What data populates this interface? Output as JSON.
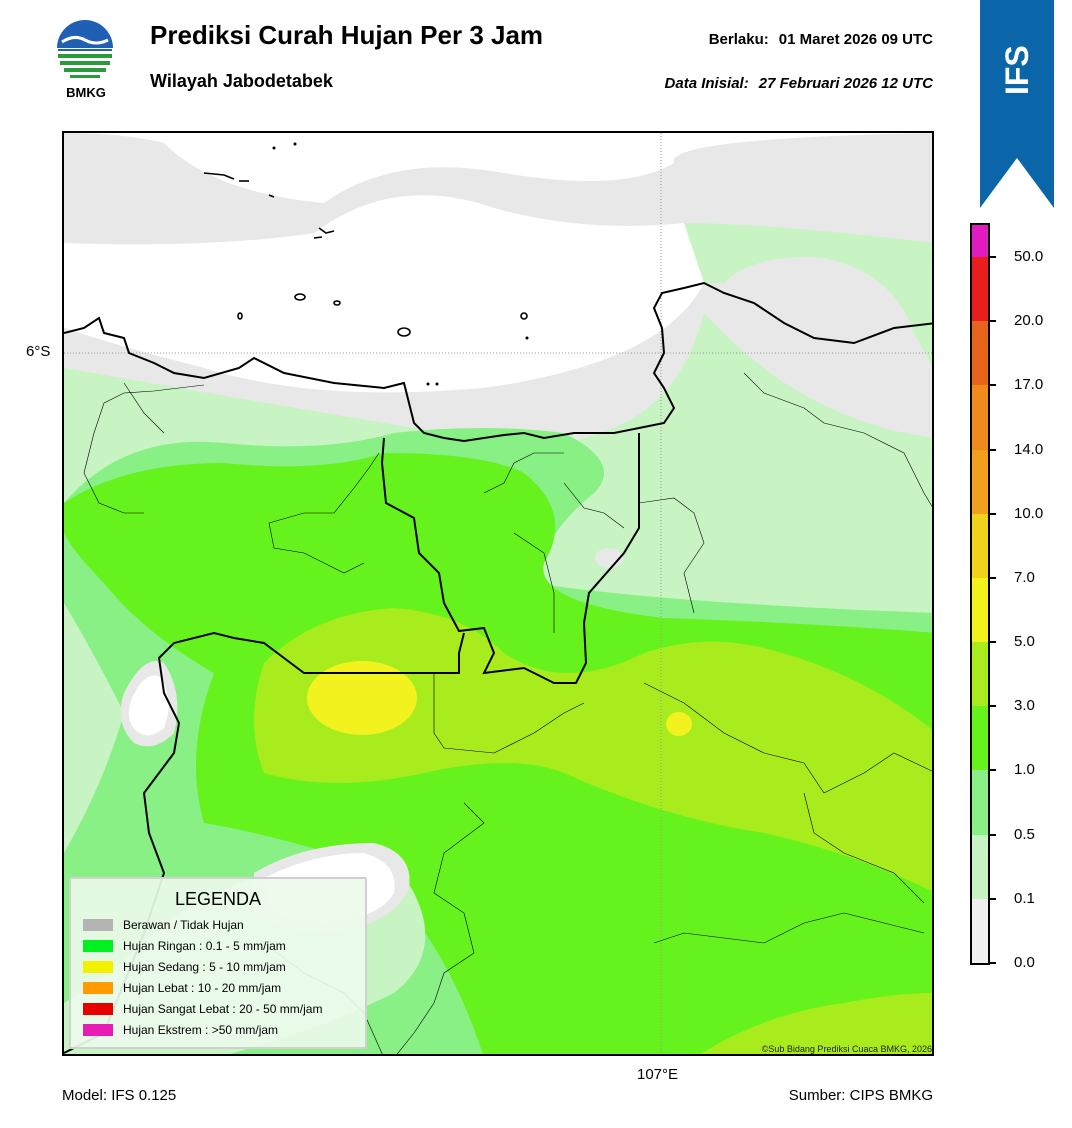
{
  "header": {
    "title": "Prediksi Curah Hujan Per 3 Jam",
    "subtitle": "Wilayah Jabodetabek",
    "valid_label": "Berlaku:",
    "valid_value": "01 Maret 2026 09 UTC",
    "initial_label": "Data Inisial:",
    "initial_value": "27 Februari 2026 12 UTC"
  },
  "logo": {
    "text": "BMKG",
    "icon": "bmkg-logo-icon"
  },
  "ribbon": {
    "text": "IFS",
    "color": "#0a66a8"
  },
  "map": {
    "lat_label": "6°S",
    "lon_label": "107°E",
    "copyright": "©Sub Bidang Prediksi Cuaca BMKG, 2026"
  },
  "legend": {
    "title": "LEGENDA",
    "items": [
      {
        "label": "Berawan / Tidak Hujan",
        "color": "#b4b4b4"
      },
      {
        "label": "Hujan Ringan : 0.1 - 5 mm/jam",
        "color": "#00f020"
      },
      {
        "label": "Hujan Sedang : 5 - 10 mm/jam",
        "color": "#f2f200"
      },
      {
        "label": "Hujan Lebat : 10 - 20 mm/jam",
        "color": "#ff9a00"
      },
      {
        "label": "Hujan Sangat Lebat : 20 - 50 mm/jam",
        "color": "#e60000"
      },
      {
        "label": "Hujan Ekstrem : >50 mm/jam",
        "color": "#e81cb4"
      }
    ]
  },
  "colorbar": {
    "segments": [
      {
        "color": "#f0f0f0"
      },
      {
        "color": "#c8f4c4"
      },
      {
        "color": "#88f084"
      },
      {
        "color": "#66f21c"
      },
      {
        "color": "#a8ec1e"
      },
      {
        "color": "#f2f21e"
      },
      {
        "color": "#f0d21c"
      },
      {
        "color": "#f0a01c"
      },
      {
        "color": "#f08a1e"
      },
      {
        "color": "#e8641c"
      },
      {
        "color": "#e81e1e"
      },
      {
        "color": "#e01cc0"
      }
    ],
    "ticks": [
      "0.0",
      "0.1",
      "0.5",
      "1.0",
      "3.0",
      "5.0",
      "7.0",
      "10.0",
      "14.0",
      "17.0",
      "20.0",
      "50.0"
    ]
  },
  "footer": {
    "model": "Model: IFS 0.125",
    "source": "Sumber: CIPS BMKG"
  }
}
